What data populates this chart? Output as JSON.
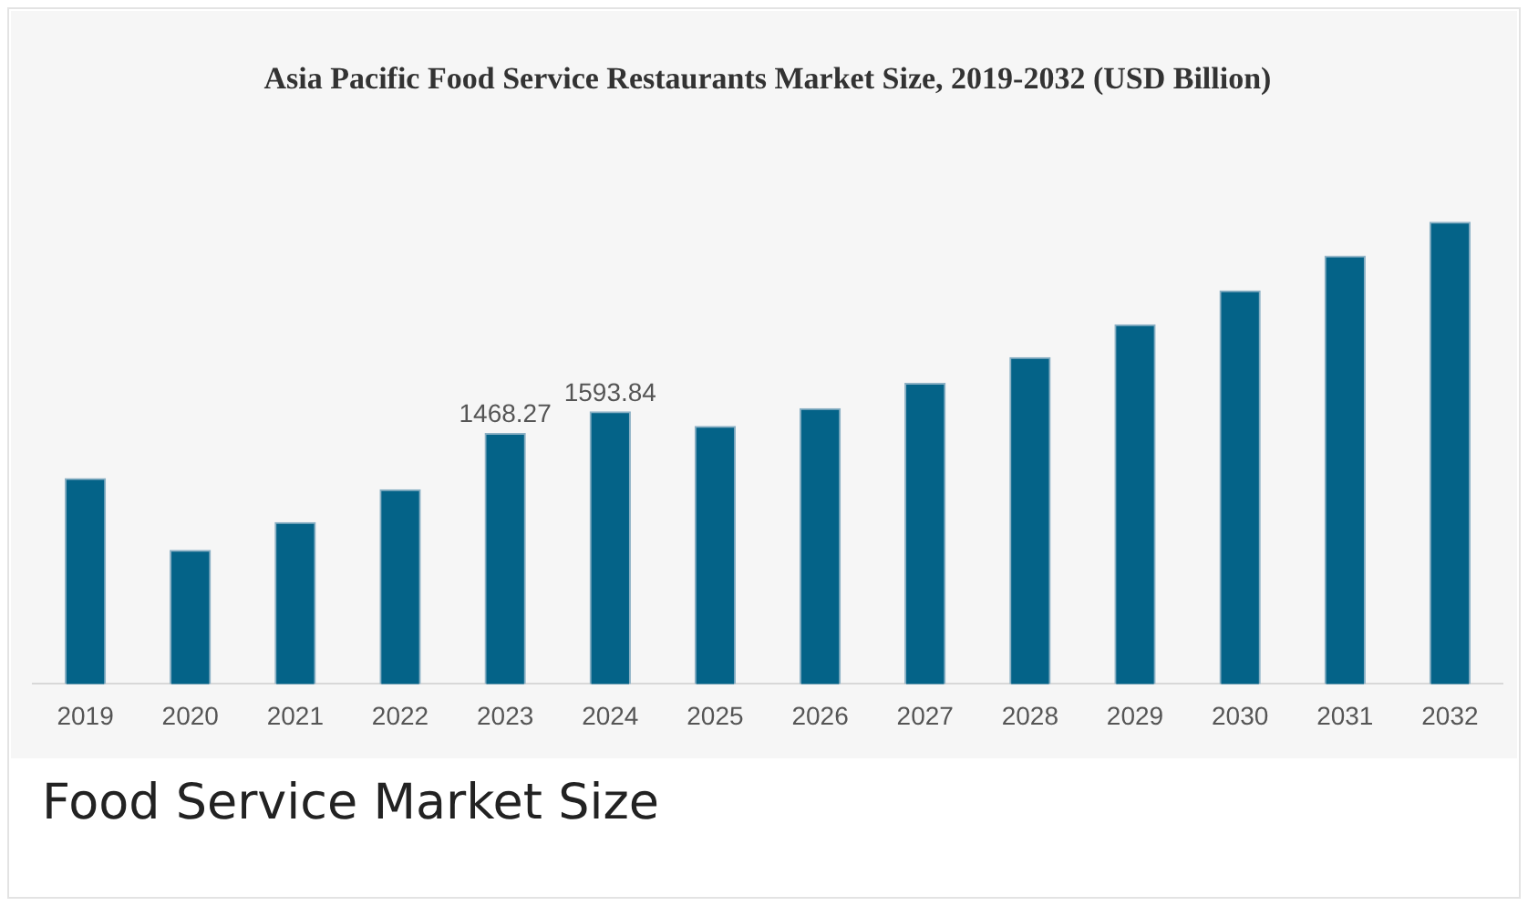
{
  "chart_data": {
    "type": "bar",
    "title": "Asia Pacific Food Service Restaurants Market Size, 2019-2032 (USD Billion)",
    "categories": [
      "2019",
      "2020",
      "2021",
      "2022",
      "2023",
      "2024",
      "2025",
      "2026",
      "2027",
      "2028",
      "2029",
      "2030",
      "2031",
      "2032"
    ],
    "values": [
      1203,
      783,
      946,
      1138,
      1468.27,
      1593.84,
      1509,
      1613,
      1762,
      1912,
      2104,
      2303,
      2506,
      2705
    ],
    "value_labels": [
      null,
      null,
      null,
      null,
      "1468.27",
      "1593.84",
      null,
      null,
      null,
      null,
      null,
      null,
      null,
      null
    ],
    "color": "#046388",
    "grid": false,
    "legend": false,
    "annotations": [
      "Food Service Market Size"
    ]
  }
}
